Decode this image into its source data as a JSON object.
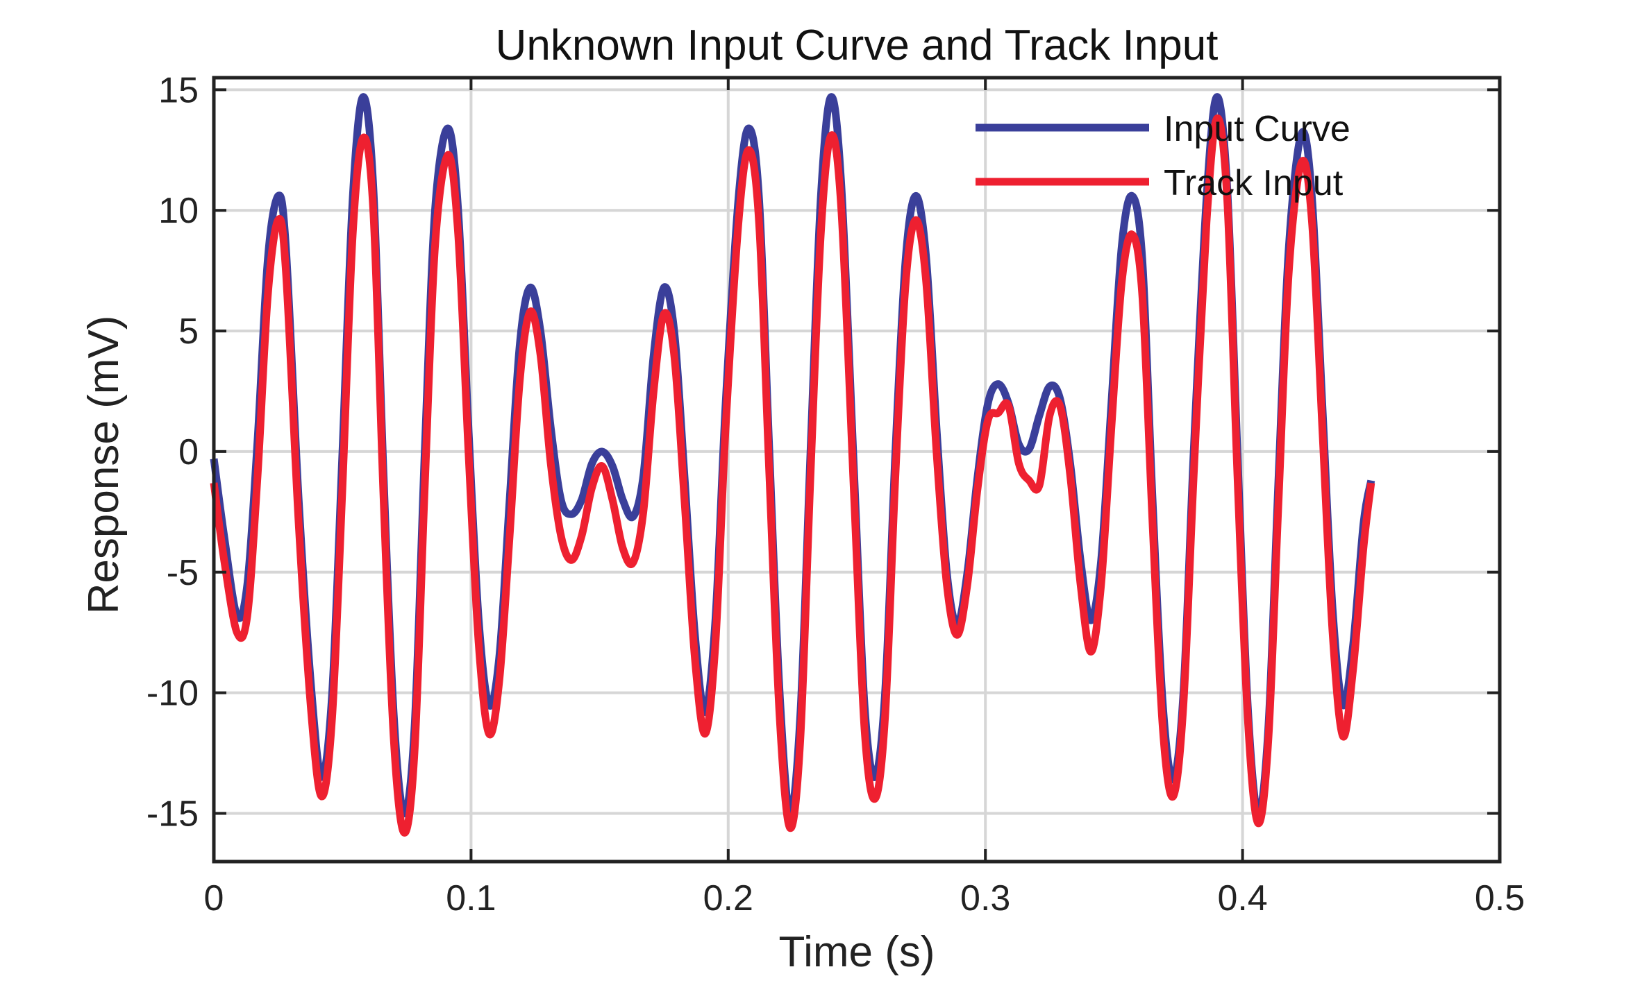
{
  "chart_data": {
    "type": "line",
    "title": "Unknown Input Curve and Track Input",
    "xlabel": "Time (s)",
    "ylabel": "Response (mV)",
    "xlim": [
      0,
      0.5
    ],
    "ylim": [
      -17,
      15.5
    ],
    "xticks": [
      0,
      0.1,
      0.2,
      0.3,
      0.4,
      0.5
    ],
    "xtick_labels": [
      "0",
      "0.1",
      "0.2",
      "0.3",
      "0.4",
      "0.5"
    ],
    "yticks": [
      15,
      10,
      5,
      0,
      -5,
      -10,
      -15
    ],
    "ytick_labels": [
      "15",
      "10",
      "5",
      "0",
      "-5",
      "-10",
      "-15"
    ],
    "grid": true,
    "legend_position": "top-right",
    "series": [
      {
        "name": "Input Curve",
        "color": "#3a3f9a",
        "points": [
          [
            0.0,
            -0.3
          ],
          [
            0.004,
            -3.5
          ],
          [
            0.009,
            -6.8
          ],
          [
            0.013,
            -5.5
          ],
          [
            0.017,
            0.5
          ],
          [
            0.021,
            8.0
          ],
          [
            0.025,
            10.6
          ],
          [
            0.028,
            8.5
          ],
          [
            0.033,
            -2.0
          ],
          [
            0.038,
            -10.0
          ],
          [
            0.042,
            -13.5
          ],
          [
            0.046,
            -10.0
          ],
          [
            0.05,
            0.0
          ],
          [
            0.054,
            10.5
          ],
          [
            0.058,
            14.7
          ],
          [
            0.062,
            11.0
          ],
          [
            0.066,
            -1.0
          ],
          [
            0.07,
            -11.0
          ],
          [
            0.074,
            -15.0
          ],
          [
            0.078,
            -11.5
          ],
          [
            0.082,
            0.0
          ],
          [
            0.086,
            10.0
          ],
          [
            0.091,
            13.4
          ],
          [
            0.095,
            10.0
          ],
          [
            0.099,
            1.0
          ],
          [
            0.103,
            -7.0
          ],
          [
            0.107,
            -10.5
          ],
          [
            0.111,
            -8.5
          ],
          [
            0.115,
            -2.0
          ],
          [
            0.119,
            4.5
          ],
          [
            0.123,
            6.8
          ],
          [
            0.127,
            5.0
          ],
          [
            0.131,
            1.0
          ],
          [
            0.135,
            -2.0
          ],
          [
            0.139,
            -2.6
          ],
          [
            0.143,
            -2.0
          ],
          [
            0.147,
            -0.5
          ],
          [
            0.151,
            0.0
          ],
          [
            0.155,
            -0.6
          ],
          [
            0.159,
            -2.0
          ],
          [
            0.163,
            -2.7
          ],
          [
            0.167,
            -1.0
          ],
          [
            0.171,
            4.0
          ],
          [
            0.175,
            6.8
          ],
          [
            0.179,
            5.0
          ],
          [
            0.183,
            -1.0
          ],
          [
            0.187,
            -7.5
          ],
          [
            0.191,
            -10.8
          ],
          [
            0.195,
            -7.0
          ],
          [
            0.199,
            2.0
          ],
          [
            0.204,
            10.5
          ],
          [
            0.208,
            13.4
          ],
          [
            0.212,
            10.5
          ],
          [
            0.216,
            0.0
          ],
          [
            0.22,
            -10.0
          ],
          [
            0.224,
            -15.0
          ],
          [
            0.228,
            -11.0
          ],
          [
            0.232,
            0.0
          ],
          [
            0.236,
            10.5
          ],
          [
            0.24,
            14.7
          ],
          [
            0.244,
            11.0
          ],
          [
            0.249,
            -1.0
          ],
          [
            0.253,
            -10.5
          ],
          [
            0.257,
            -13.5
          ],
          [
            0.261,
            -10.0
          ],
          [
            0.265,
            0.0
          ],
          [
            0.269,
            8.0
          ],
          [
            0.273,
            10.6
          ],
          [
            0.277,
            8.0
          ],
          [
            0.281,
            1.0
          ],
          [
            0.285,
            -5.0
          ],
          [
            0.289,
            -7.2
          ],
          [
            0.293,
            -5.0
          ],
          [
            0.297,
            -1.0
          ],
          [
            0.301,
            2.0
          ],
          [
            0.305,
            2.8
          ],
          [
            0.309,
            2.0
          ],
          [
            0.313,
            0.3
          ],
          [
            0.317,
            0.1
          ],
          [
            0.321,
            1.5
          ],
          [
            0.325,
            2.7
          ],
          [
            0.329,
            2.2
          ],
          [
            0.333,
            -0.5
          ],
          [
            0.337,
            -4.5
          ],
          [
            0.341,
            -7.0
          ],
          [
            0.345,
            -4.5
          ],
          [
            0.349,
            2.0
          ],
          [
            0.353,
            8.5
          ],
          [
            0.357,
            10.6
          ],
          [
            0.361,
            8.0
          ],
          [
            0.365,
            -2.0
          ],
          [
            0.369,
            -10.5
          ],
          [
            0.373,
            -13.6
          ],
          [
            0.377,
            -10.0
          ],
          [
            0.381,
            0.0
          ],
          [
            0.386,
            10.5
          ],
          [
            0.39,
            14.7
          ],
          [
            0.394,
            11.0
          ],
          [
            0.398,
            0.0
          ],
          [
            0.402,
            -10.5
          ],
          [
            0.406,
            -15.0
          ],
          [
            0.41,
            -11.5
          ],
          [
            0.414,
            -1.0
          ],
          [
            0.418,
            8.5
          ],
          [
            0.423,
            13.2
          ],
          [
            0.427,
            10.5
          ],
          [
            0.431,
            2.0
          ],
          [
            0.435,
            -6.5
          ],
          [
            0.439,
            -10.5
          ],
          [
            0.443,
            -8.0
          ],
          [
            0.447,
            -3.0
          ],
          [
            0.45,
            -1.2
          ]
        ]
      },
      {
        "name": "Track Input",
        "color": "#ee2030",
        "points": [
          [
            0.0,
            -1.3
          ],
          [
            0.004,
            -4.5
          ],
          [
            0.009,
            -7.5
          ],
          [
            0.013,
            -6.8
          ],
          [
            0.017,
            -1.0
          ],
          [
            0.021,
            6.5
          ],
          [
            0.025,
            9.6
          ],
          [
            0.028,
            7.5
          ],
          [
            0.033,
            -3.0
          ],
          [
            0.038,
            -11.0
          ],
          [
            0.042,
            -14.3
          ],
          [
            0.046,
            -11.0
          ],
          [
            0.05,
            -1.5
          ],
          [
            0.054,
            9.0
          ],
          [
            0.058,
            13.0
          ],
          [
            0.062,
            10.0
          ],
          [
            0.066,
            -2.0
          ],
          [
            0.07,
            -12.0
          ],
          [
            0.074,
            -15.8
          ],
          [
            0.078,
            -12.5
          ],
          [
            0.082,
            -1.5
          ],
          [
            0.086,
            8.5
          ],
          [
            0.091,
            12.3
          ],
          [
            0.095,
            9.0
          ],
          [
            0.099,
            0.0
          ],
          [
            0.103,
            -8.0
          ],
          [
            0.107,
            -11.7
          ],
          [
            0.111,
            -9.5
          ],
          [
            0.115,
            -3.5
          ],
          [
            0.119,
            3.0
          ],
          [
            0.123,
            5.8
          ],
          [
            0.127,
            4.0
          ],
          [
            0.131,
            -0.5
          ],
          [
            0.135,
            -3.5
          ],
          [
            0.139,
            -4.5
          ],
          [
            0.143,
            -3.5
          ],
          [
            0.147,
            -1.5
          ],
          [
            0.151,
            -0.6
          ],
          [
            0.155,
            -2.0
          ],
          [
            0.159,
            -4.0
          ],
          [
            0.163,
            -4.6
          ],
          [
            0.167,
            -2.5
          ],
          [
            0.171,
            2.5
          ],
          [
            0.175,
            5.7
          ],
          [
            0.179,
            4.0
          ],
          [
            0.183,
            -2.0
          ],
          [
            0.187,
            -8.5
          ],
          [
            0.191,
            -11.7
          ],
          [
            0.195,
            -8.0
          ],
          [
            0.199,
            1.0
          ],
          [
            0.204,
            9.5
          ],
          [
            0.208,
            12.5
          ],
          [
            0.212,
            9.5
          ],
          [
            0.216,
            -1.0
          ],
          [
            0.22,
            -11.0
          ],
          [
            0.224,
            -15.6
          ],
          [
            0.228,
            -12.0
          ],
          [
            0.232,
            -1.0
          ],
          [
            0.236,
            9.0
          ],
          [
            0.24,
            13.1
          ],
          [
            0.244,
            10.0
          ],
          [
            0.249,
            -2.0
          ],
          [
            0.253,
            -11.5
          ],
          [
            0.257,
            -14.4
          ],
          [
            0.261,
            -11.0
          ],
          [
            0.265,
            -1.0
          ],
          [
            0.269,
            7.0
          ],
          [
            0.273,
            9.6
          ],
          [
            0.277,
            7.0
          ],
          [
            0.281,
            0.0
          ],
          [
            0.285,
            -5.5
          ],
          [
            0.289,
            -7.6
          ],
          [
            0.293,
            -5.5
          ],
          [
            0.297,
            -1.5
          ],
          [
            0.301,
            1.3
          ],
          [
            0.305,
            1.6
          ],
          [
            0.309,
            1.9
          ],
          [
            0.313,
            -0.5
          ],
          [
            0.317,
            -1.2
          ],
          [
            0.321,
            -1.4
          ],
          [
            0.325,
            1.5
          ],
          [
            0.329,
            1.9
          ],
          [
            0.333,
            -1.0
          ],
          [
            0.337,
            -5.5
          ],
          [
            0.341,
            -8.3
          ],
          [
            0.345,
            -5.5
          ],
          [
            0.349,
            1.0
          ],
          [
            0.353,
            7.0
          ],
          [
            0.357,
            9.0
          ],
          [
            0.361,
            6.5
          ],
          [
            0.365,
            -3.0
          ],
          [
            0.369,
            -11.5
          ],
          [
            0.373,
            -14.3
          ],
          [
            0.377,
            -10.5
          ],
          [
            0.381,
            -1.0
          ],
          [
            0.386,
            9.5
          ],
          [
            0.39,
            13.8
          ],
          [
            0.394,
            10.5
          ],
          [
            0.398,
            -1.0
          ],
          [
            0.402,
            -11.0
          ],
          [
            0.406,
            -15.4
          ],
          [
            0.41,
            -12.0
          ],
          [
            0.414,
            -2.0
          ],
          [
            0.418,
            7.5
          ],
          [
            0.423,
            12.0
          ],
          [
            0.427,
            9.5
          ],
          [
            0.431,
            1.0
          ],
          [
            0.435,
            -7.5
          ],
          [
            0.439,
            -11.8
          ],
          [
            0.443,
            -9.0
          ],
          [
            0.447,
            -4.0
          ],
          [
            0.45,
            -1.3
          ]
        ]
      }
    ]
  }
}
